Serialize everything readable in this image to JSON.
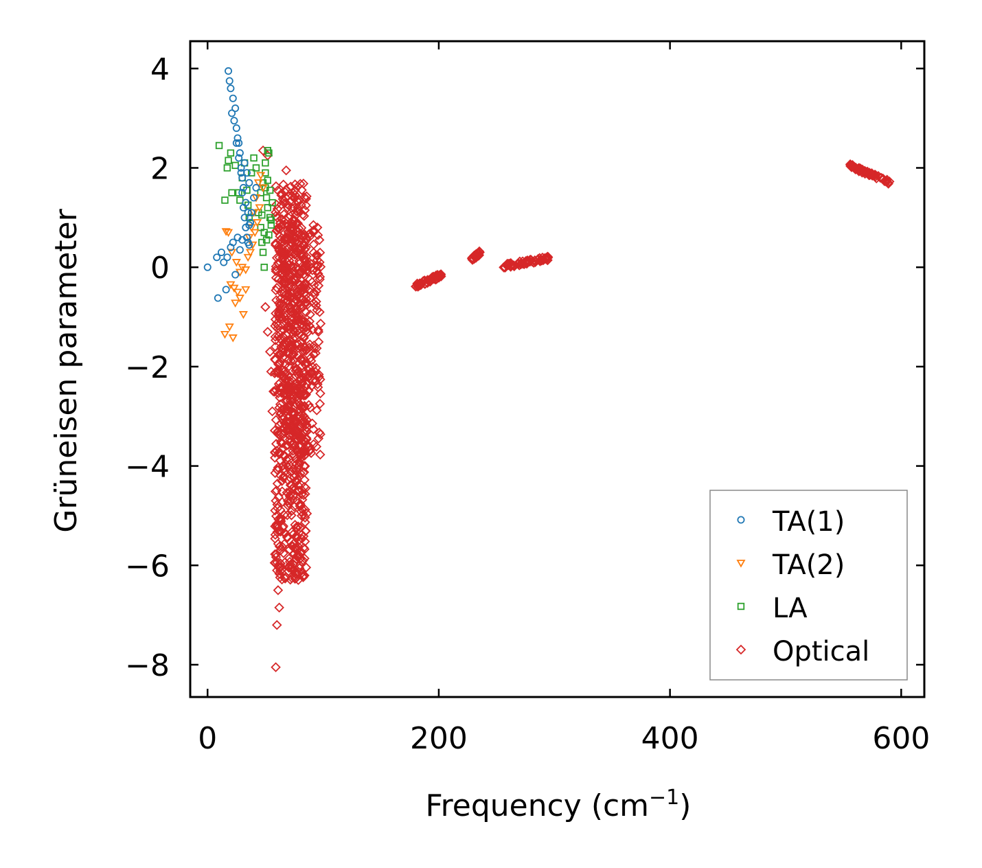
{
  "chart_data": {
    "type": "scatter",
    "title": "",
    "xlabel": "Frequency (cm",
    "xlabel_superscript": "−1",
    "xlabel_suffix": ")",
    "ylabel": "Grüneisen parameter",
    "xlim": [
      -15,
      620
    ],
    "ylim": [
      -8.65,
      4.55
    ],
    "xticks": [
      0,
      200,
      400,
      600
    ],
    "xtick_labels": [
      "0",
      "200",
      "400",
      "600"
    ],
    "yticks": [
      4,
      2,
      0,
      -2,
      -4,
      -6,
      -8
    ],
    "ytick_labels": [
      "4",
      "2",
      "0",
      "−2",
      "−4",
      "−6",
      "−8"
    ],
    "grid": false,
    "legend_position": "bottom-right",
    "series": [
      {
        "name": "TA(1)",
        "marker": "circle",
        "color": "#1f77b4",
        "points": [
          [
            0,
            0
          ],
          [
            8,
            0.2
          ],
          [
            9,
            -0.62
          ],
          [
            12,
            0.3
          ],
          [
            14,
            0.1
          ],
          [
            16,
            -0.45
          ],
          [
            17,
            0.2
          ],
          [
            18,
            3.95
          ],
          [
            19,
            3.75
          ],
          [
            20,
            3.6
          ],
          [
            21,
            3.1
          ],
          [
            22,
            3.4
          ],
          [
            23,
            2.95
          ],
          [
            24,
            3.2
          ],
          [
            25,
            2.8
          ],
          [
            26,
            2.6
          ],
          [
            27,
            2.5
          ],
          [
            28,
            2.3
          ],
          [
            29,
            2.0
          ],
          [
            30,
            1.8
          ],
          [
            30,
            1.5
          ],
          [
            31,
            1.2
          ],
          [
            32,
            1.0
          ],
          [
            33,
            0.8
          ],
          [
            34,
            0.6
          ],
          [
            35,
            0.5
          ],
          [
            22,
            0.5
          ],
          [
            24,
            -0.15
          ],
          [
            28,
            0.35
          ],
          [
            36,
            0.85
          ],
          [
            38,
            1.1
          ],
          [
            40,
            1.4
          ],
          [
            42,
            1.6
          ],
          [
            25,
            2.5
          ],
          [
            27,
            2.2
          ],
          [
            29,
            1.9
          ],
          [
            31,
            1.6
          ],
          [
            33,
            1.3
          ],
          [
            35,
            1.1
          ],
          [
            37,
            0.9
          ],
          [
            20,
            0.4
          ],
          [
            26,
            0.6
          ],
          [
            30,
            0.55
          ],
          [
            36,
            0.45
          ],
          [
            32,
            2.1
          ],
          [
            34,
            1.9
          ],
          [
            36,
            1.7
          ]
        ]
      },
      {
        "name": "TA(2)",
        "marker": "triangle-down",
        "color": "#ff7f0e",
        "points": [
          [
            15,
            -1.35
          ],
          [
            19,
            -1.2
          ],
          [
            22,
            -1.42
          ],
          [
            24,
            -0.72
          ],
          [
            26,
            -0.5
          ],
          [
            28,
            -0.62
          ],
          [
            31,
            -0.95
          ],
          [
            33,
            -0.45
          ],
          [
            20,
            -0.35
          ],
          [
            23,
            -0.42
          ],
          [
            16,
            0.72
          ],
          [
            18,
            0.7
          ],
          [
            21,
            0.3
          ],
          [
            25,
            0.1
          ],
          [
            28,
            -0.1
          ],
          [
            30,
            0.0
          ],
          [
            33,
            -0.05
          ],
          [
            36,
            0.6
          ],
          [
            38,
            0.8
          ],
          [
            40,
            1.1
          ],
          [
            42,
            1.4
          ],
          [
            44,
            1.7
          ],
          [
            46,
            1.85
          ],
          [
            48,
            1.6
          ],
          [
            45,
            1.2
          ],
          [
            43,
            0.9
          ],
          [
            41,
            0.7
          ],
          [
            39,
            0.45
          ],
          [
            37,
            0.3
          ],
          [
            35,
            0.2
          ]
        ]
      },
      {
        "name": "LA",
        "marker": "square",
        "color": "#2ca02c",
        "points": [
          [
            10,
            2.45
          ],
          [
            15,
            1.35
          ],
          [
            17,
            2.0
          ],
          [
            18,
            2.15
          ],
          [
            20,
            2.3
          ],
          [
            21,
            1.5
          ],
          [
            24,
            2.05
          ],
          [
            27,
            1.5
          ],
          [
            28,
            1.35
          ],
          [
            30,
            1.8
          ],
          [
            32,
            2.1
          ],
          [
            34,
            1.55
          ],
          [
            35,
            1.25
          ],
          [
            36,
            1.0
          ],
          [
            38,
            1.9
          ],
          [
            40,
            2.2
          ],
          [
            42,
            2.0
          ],
          [
            44,
            1.1
          ],
          [
            46,
            0.8
          ],
          [
            47,
            0.5
          ],
          [
            48,
            0.3
          ],
          [
            49,
            0.0
          ],
          [
            50,
            1.6
          ],
          [
            51,
            1.4
          ],
          [
            52,
            1.2
          ],
          [
            53,
            2.3
          ],
          [
            54,
            1.0
          ],
          [
            55,
            0.85
          ],
          [
            56,
            1.3
          ],
          [
            46,
            1.5
          ],
          [
            48,
            1.7
          ],
          [
            50,
            1.9
          ],
          [
            52,
            1.75
          ],
          [
            54,
            1.55
          ],
          [
            47,
            1.05
          ],
          [
            49,
            0.7
          ],
          [
            51,
            0.55
          ],
          [
            53,
            0.65
          ],
          [
            55,
            0.95
          ],
          [
            50,
            2.1
          ],
          [
            52,
            2.35
          ]
        ]
      },
      {
        "name": "Optical",
        "marker": "diamond",
        "color": "#d62728",
        "clusters": [
          {
            "freq_range": [
              58,
              86
            ],
            "gruneisen_range": [
              -6.3,
              1.7
            ],
            "count": 700
          },
          {
            "freq_range": [
              62,
              98
            ],
            "gruneisen_range": [
              -3.8,
              0.9
            ],
            "count": 300
          },
          {
            "freq_range": [
              180,
              202
            ],
            "gruneisen_range": [
              -0.38,
              -0.16
            ],
            "count": 60
          },
          {
            "freq_range": [
              228,
              236
            ],
            "gruneisen_range": [
              0.15,
              0.3
            ],
            "count": 25
          },
          {
            "freq_range": [
              256,
              295
            ],
            "gruneisen_range": [
              0.02,
              0.18
            ],
            "count": 60
          },
          {
            "freq_range": [
              555,
              590
            ],
            "gruneisen_range": [
              1.7,
              2.05
            ],
            "count": 60
          }
        ],
        "outliers": [
          [
            59,
            -8.05
          ],
          [
            60,
            -7.2
          ],
          [
            62,
            -6.85
          ],
          [
            61,
            -6.5
          ],
          [
            58,
            -5.95
          ],
          [
            60,
            -5.2
          ],
          [
            59,
            -4.7
          ],
          [
            61,
            -3.3
          ],
          [
            56,
            -2.9
          ],
          [
            57,
            -2.5
          ],
          [
            55,
            -2.1
          ],
          [
            54,
            -1.7
          ],
          [
            52,
            -1.3
          ],
          [
            50,
            -0.8
          ],
          [
            48,
            2.35
          ],
          [
            52,
            2.25
          ],
          [
            68,
            1.95
          ],
          [
            95,
            0.8
          ]
        ]
      }
    ]
  }
}
